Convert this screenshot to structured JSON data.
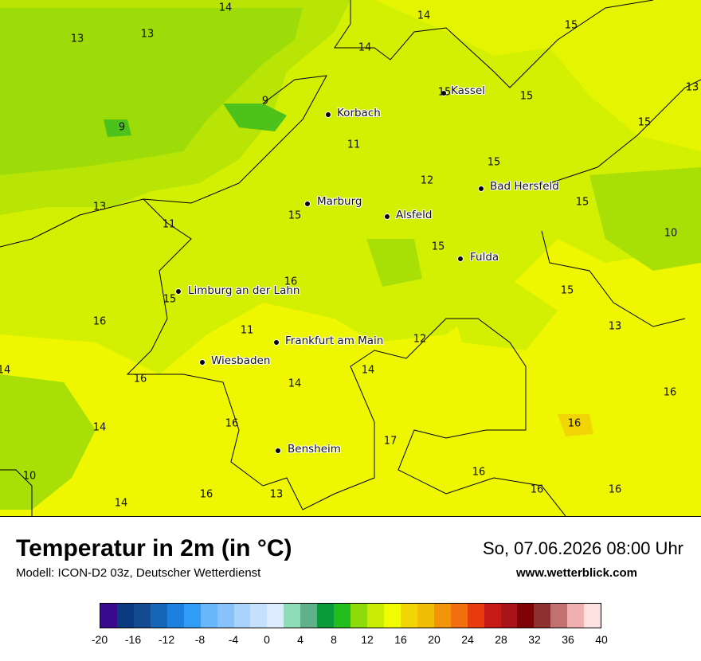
{
  "map": {
    "cities": [
      {
        "name": "Kassel"
      },
      {
        "name": "Korbach"
      },
      {
        "name": "Bad Hersfeld"
      },
      {
        "name": "Marburg"
      },
      {
        "name": "Alsfeld"
      },
      {
        "name": "Fulda"
      },
      {
        "name": "Limburg an der Lahn"
      },
      {
        "name": "Frankfurt am Main"
      },
      {
        "name": "Wiesbaden"
      },
      {
        "name": "Bensheim"
      }
    ],
    "values": [
      "14",
      "14",
      "13",
      "13",
      "14",
      "15",
      "15",
      "13",
      "15",
      "9",
      "9",
      "11",
      "15",
      "12",
      "15",
      "13",
      "11",
      "15",
      "15",
      "10",
      "15",
      "16",
      "15",
      "16",
      "11",
      "12",
      "14",
      "13",
      "15",
      "14",
      "16",
      "14",
      "16",
      "17",
      "16",
      "10",
      "14",
      "16",
      "16",
      "16",
      "16",
      "16",
      "13",
      "14"
    ]
  },
  "footer": {
    "title": "Temperatur in 2m (in °C)",
    "model": "Modell: ICON-D2 03z, Deutscher Wetterdienst",
    "datetime": "So, 07.06.2026 08:00 Uhr",
    "site": "www.wetterblick.com"
  },
  "legend": {
    "colors": [
      "#3a0a8c",
      "#0b3a80",
      "#124b8f",
      "#1565b8",
      "#1c80e0",
      "#2f9cf5",
      "#68b6fb",
      "#87c2fb",
      "#a9d2fd",
      "#c4e0fd",
      "#dcecfe",
      "#8fdcb9",
      "#60b08a",
      "#0b9a3a",
      "#23bd1c",
      "#8ddb0a",
      "#c9ec05",
      "#f1fb02",
      "#f2d505",
      "#f2bd05",
      "#f2950a",
      "#f27010",
      "#e93c0e",
      "#c61a16",
      "#a9131a",
      "#7e0206",
      "#8f3030",
      "#c27070",
      "#f0b0b0",
      "#fde0e0"
    ],
    "ticks": [
      "-20",
      "-16",
      "-12",
      "-8",
      "-4",
      "0",
      "4",
      "8",
      "12",
      "16",
      "20",
      "24",
      "28",
      "32",
      "36",
      "40"
    ]
  }
}
